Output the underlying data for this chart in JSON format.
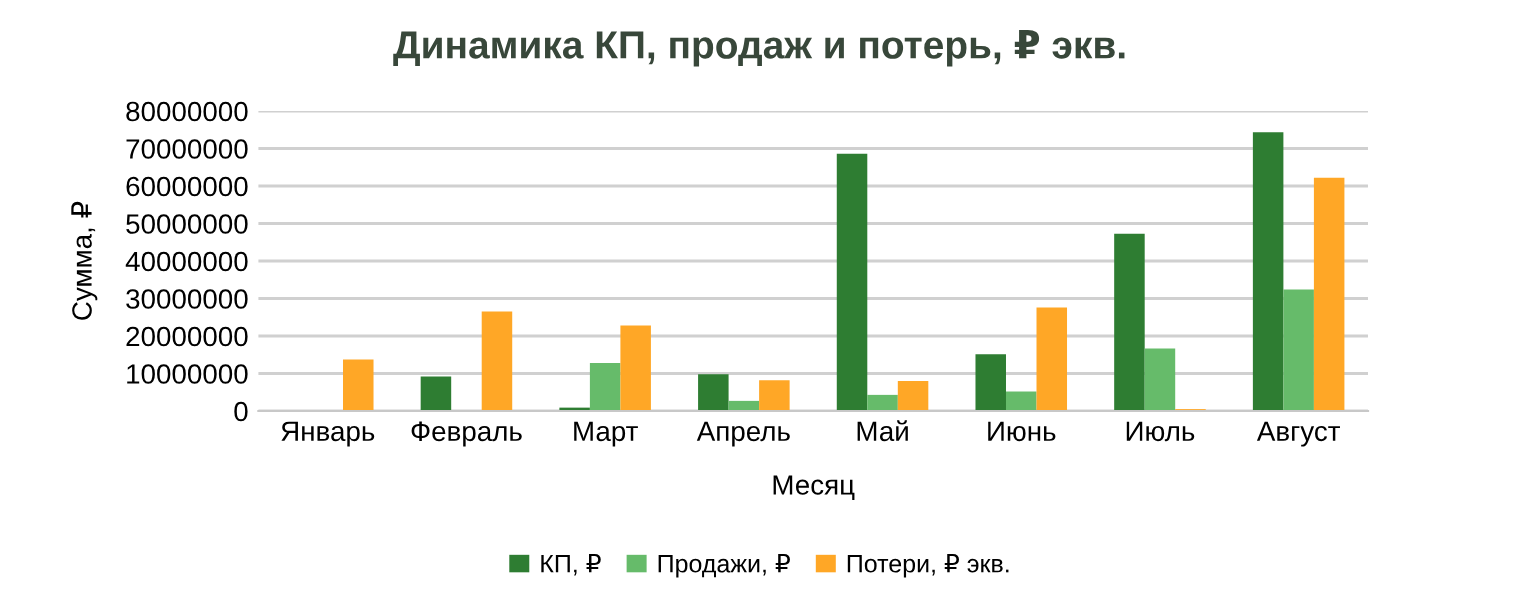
{
  "chart_data": {
    "type": "bar",
    "title": "Динамика КП, продаж и потерь, ₽ экв.",
    "xlabel": "Месяц",
    "ylabel": "Сумма, ₽",
    "categories": [
      "Январь",
      "Февраль",
      "Март",
      "Апрель",
      "Май",
      "Июнь",
      "Июль",
      "Август"
    ],
    "series": [
      {
        "name": "КП, ₽",
        "color": "#2e7d32",
        "values": [
          0,
          9200000,
          900000,
          9800000,
          68600000,
          15100000,
          47300000,
          74300000
        ]
      },
      {
        "name": "Продажи, ₽",
        "color": "#66bb6a",
        "values": [
          0,
          0,
          12800000,
          2700000,
          4300000,
          5200000,
          16700000,
          32400000
        ]
      },
      {
        "name": "Потери, ₽ экв.",
        "color": "#ffa726",
        "values": [
          13700000,
          26500000,
          22800000,
          8200000,
          8000000,
          27600000,
          500000,
          62200000
        ]
      }
    ],
    "ylim": [
      0,
      80000000
    ],
    "yticks": [
      0,
      10000000,
      20000000,
      30000000,
      40000000,
      50000000,
      60000000,
      70000000,
      80000000
    ],
    "grid": "y",
    "legend": "bottom"
  }
}
